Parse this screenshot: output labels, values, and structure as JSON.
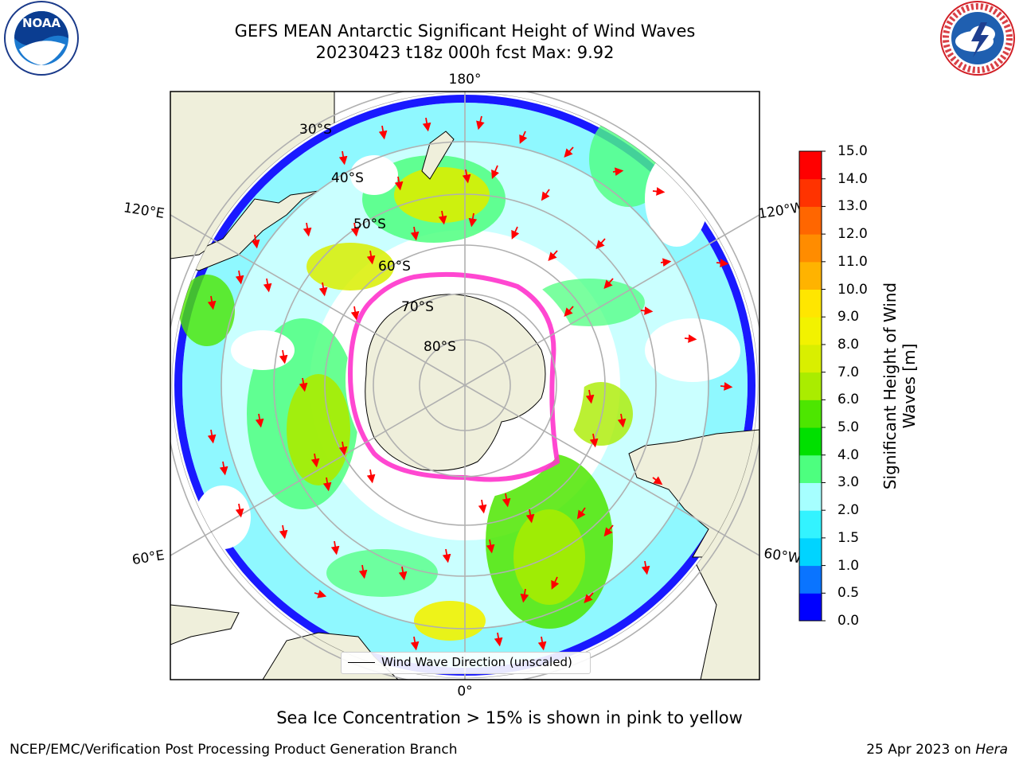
{
  "title": {
    "line1": "GEFS MEAN Antarctic Significant Height of Wind Waves",
    "line2": "20230423 t18z 000h fcst   Max: 9.92"
  },
  "colorbar": {
    "label_line1": "Significant Height of Wind",
    "label_line2": "Waves [m]",
    "ticks": [
      "0.0",
      "0.5",
      "1.0",
      "1.5",
      "2.0",
      "3.0",
      "4.0",
      "5.0",
      "6.0",
      "7.0",
      "8.0",
      "9.0",
      "10.0",
      "11.0",
      "12.0",
      "13.0",
      "14.0",
      "15.0"
    ],
    "colors": [
      "#0000ff",
      "#0a74ff",
      "#00d4ff",
      "#33f3ff",
      "#a6ffff",
      "#4dff7f",
      "#00e000",
      "#4de600",
      "#aaec00",
      "#d9ef00",
      "#f2f200",
      "#ffe600",
      "#ffb300",
      "#ff8c00",
      "#ff6600",
      "#ff3300",
      "#ff0000"
    ]
  },
  "map": {
    "lat_labels": [
      "30°S",
      "40°S",
      "50°S",
      "60°S",
      "70°S",
      "80°S"
    ],
    "lon_labels": {
      "top": "180°",
      "bottom": "0°",
      "upper_left": "120°E",
      "upper_right": "120°W",
      "lower_left": "60°E",
      "lower_right": "60°W"
    },
    "ocean_color": "#ffffff",
    "land_color": "#efefdb",
    "grid_color": "#b0b0b0",
    "arrow_color": "#ff0000",
    "ice_edge_color": "#ff33cc"
  },
  "legend": {
    "label": "Wind Wave Direction (unscaled)"
  },
  "ice_note": "Sea Ice Concentration > 15% is shown in pink to yellow",
  "footer": {
    "left": "NCEP/EMC/Verification Post Processing Product Generation Branch",
    "right_prefix": "25 Apr 2023 on ",
    "right_host": "Hera"
  },
  "logos": {
    "noaa_text": "NOAA",
    "noaa_ring": "NATIONAL OCEANIC AND ATMOSPHERIC ADMINISTRATION · U.S. DEPARTMENT OF COMMERCE",
    "nws_ring": "NATIONAL WEATHER SERVICE"
  }
}
